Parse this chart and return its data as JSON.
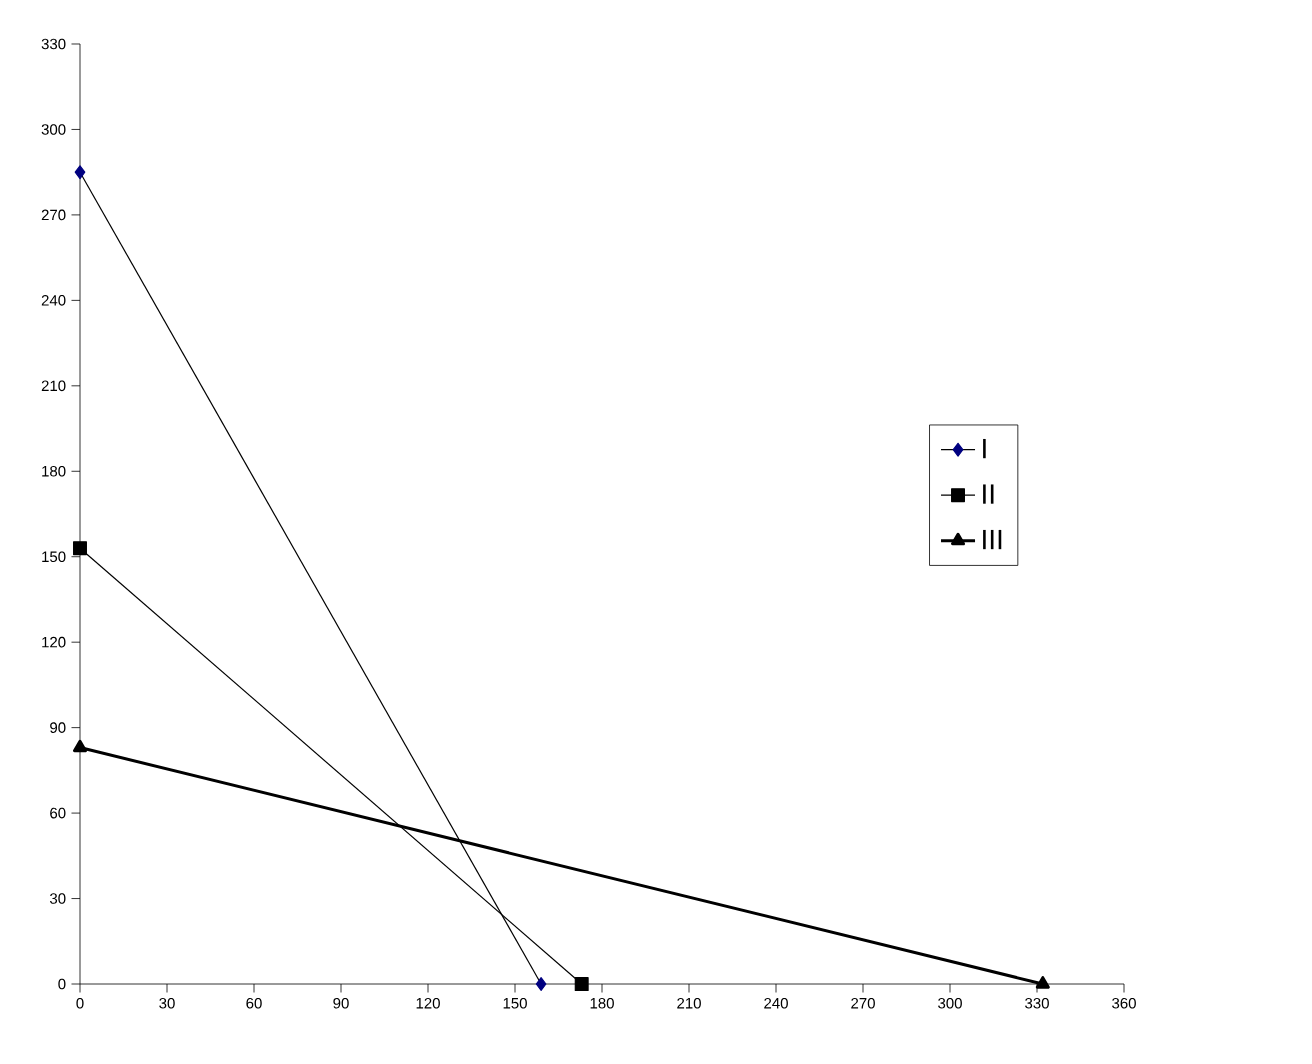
{
  "chart_data": {
    "type": "line",
    "xlim": [
      0,
      360
    ],
    "xticks": [
      0,
      30,
      60,
      90,
      120,
      150,
      180,
      210,
      240,
      270,
      300,
      330,
      360
    ],
    "ylim": [
      0,
      330
    ],
    "yticks": [
      0,
      30,
      60,
      90,
      120,
      150,
      180,
      210,
      240,
      270,
      300,
      330
    ],
    "grid": false,
    "legend": "right",
    "line_style": "solid",
    "series": [
      {
        "name": "I",
        "color": "#000080",
        "marker": "diamond",
        "x": [
          0,
          159
        ],
        "values": [
          285,
          0
        ]
      },
      {
        "name": "II",
        "color": "#000000",
        "marker": "square",
        "x": [
          0,
          173
        ],
        "values": [
          153,
          0
        ]
      },
      {
        "name": "III",
        "color": "#000000",
        "marker": "triangle",
        "x": [
          0,
          332
        ],
        "values": [
          83,
          0
        ]
      }
    ]
  }
}
